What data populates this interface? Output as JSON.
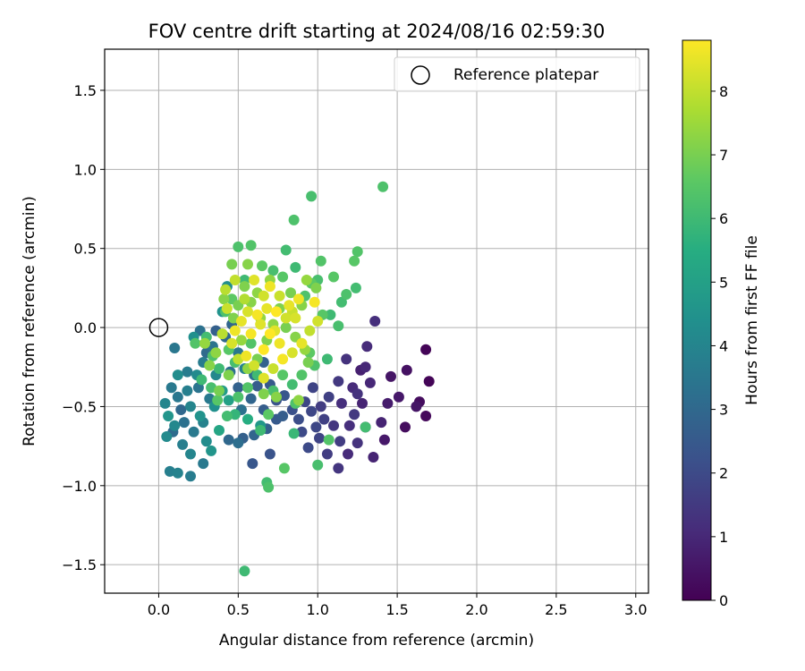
{
  "chart_data": {
    "type": "scatter",
    "title": "FOV centre drift starting at 2024/08/16 02:59:30",
    "xlabel": "Angular distance from reference (arcmin)",
    "ylabel": "Rotation from reference (arcmin)",
    "xlim": [
      -0.34,
      3.08
    ],
    "ylim": [
      -1.68,
      1.76
    ],
    "xticks": [
      0.0,
      0.5,
      1.0,
      1.5,
      2.0,
      2.5,
      3.0
    ],
    "xtick_labels": [
      "0.0",
      "0.5",
      "1.0",
      "1.5",
      "2.0",
      "2.5",
      "3.0"
    ],
    "yticks": [
      -1.5,
      -1.0,
      -0.5,
      0.0,
      0.5,
      1.0,
      1.5
    ],
    "ytick_labels": [
      "−1.5",
      "−1.0",
      "−0.5",
      "0.0",
      "0.5",
      "1.0",
      "1.5"
    ],
    "grid": true,
    "legend": {
      "placement": "top-right",
      "entries": [
        "Reference platepar"
      ]
    },
    "reference_point": {
      "x": 0.0,
      "y": 0.0
    },
    "colorbar": {
      "label": "Hours from first FF file",
      "range": [
        0,
        8.8
      ],
      "ticks": [
        0,
        1,
        2,
        3,
        4,
        5,
        6,
        7,
        8
      ],
      "tick_labels": [
        "0",
        "1",
        "2",
        "3",
        "4",
        "5",
        "6",
        "7",
        "8"
      ],
      "colormap": "viridis"
    },
    "points": [
      {
        "x": 1.68,
        "y": -0.14,
        "h": 0.1
      },
      {
        "x": 1.7,
        "y": -0.34,
        "h": 0.1
      },
      {
        "x": 1.68,
        "y": -0.56,
        "h": 0.2
      },
      {
        "x": 1.64,
        "y": -0.47,
        "h": 0.3
      },
      {
        "x": 1.62,
        "y": -0.5,
        "h": 0.5
      },
      {
        "x": 1.56,
        "y": -0.27,
        "h": 0.4
      },
      {
        "x": 1.55,
        "y": -0.63,
        "h": 0.3
      },
      {
        "x": 1.46,
        "y": -0.31,
        "h": 0.5
      },
      {
        "x": 1.51,
        "y": -0.44,
        "h": 0.6
      },
      {
        "x": 1.44,
        "y": -0.48,
        "h": 0.7
      },
      {
        "x": 1.4,
        "y": -0.6,
        "h": 0.9
      },
      {
        "x": 1.36,
        "y": 0.04,
        "h": 1.2
      },
      {
        "x": 1.31,
        "y": -0.12,
        "h": 1.1
      },
      {
        "x": 1.3,
        "y": -0.25,
        "h": 1.0
      },
      {
        "x": 1.27,
        "y": -0.27,
        "h": 0.8
      },
      {
        "x": 1.25,
        "y": -0.42,
        "h": 1.3
      },
      {
        "x": 1.23,
        "y": -0.55,
        "h": 1.5
      },
      {
        "x": 1.2,
        "y": -0.62,
        "h": 1.2
      },
      {
        "x": 1.19,
        "y": -0.8,
        "h": 1.1
      },
      {
        "x": 1.13,
        "y": -0.89,
        "h": 1.4
      },
      {
        "x": 1.06,
        "y": -0.8,
        "h": 1.6
      },
      {
        "x": 1.01,
        "y": -0.7,
        "h": 1.8
      },
      {
        "x": 0.99,
        "y": -0.63,
        "h": 1.9
      },
      {
        "x": 0.94,
        "y": -0.76,
        "h": 2.0
      },
      {
        "x": 0.88,
        "y": -0.58,
        "h": 2.1
      },
      {
        "x": 1.35,
        "y": -0.82,
        "h": 0.9
      },
      {
        "x": 1.42,
        "y": -0.71,
        "h": 0.6
      },
      {
        "x": 1.33,
        "y": -0.35,
        "h": 1.0
      },
      {
        "x": 1.18,
        "y": -0.2,
        "h": 1.3
      },
      {
        "x": 1.13,
        "y": -0.34,
        "h": 1.5
      },
      {
        "x": 1.07,
        "y": -0.44,
        "h": 1.7
      },
      {
        "x": 1.02,
        "y": -0.5,
        "h": 1.6
      },
      {
        "x": 0.97,
        "y": -0.38,
        "h": 1.8
      },
      {
        "x": 0.92,
        "y": -0.47,
        "h": 1.9
      },
      {
        "x": 0.84,
        "y": -0.52,
        "h": 2.2
      },
      {
        "x": 0.79,
        "y": -0.43,
        "h": 2.4
      },
      {
        "x": 0.74,
        "y": -0.58,
        "h": 2.5
      },
      {
        "x": 0.7,
        "y": -0.8,
        "h": 2.3
      },
      {
        "x": 0.59,
        "y": -0.86,
        "h": 2.4
      },
      {
        "x": 0.53,
        "y": -0.7,
        "h": 2.7
      },
      {
        "x": 0.66,
        "y": -0.52,
        "h": 2.6
      },
      {
        "x": 1.1,
        "y": -0.62,
        "h": 1.4
      },
      {
        "x": 1.15,
        "y": -0.48,
        "h": 1.2
      },
      {
        "x": 1.22,
        "y": -0.38,
        "h": 1.1
      },
      {
        "x": 1.28,
        "y": -0.48,
        "h": 0.9
      },
      {
        "x": 1.3,
        "y": -0.63,
        "h": 1.0
      },
      {
        "x": 1.25,
        "y": -0.73,
        "h": 1.3
      },
      {
        "x": 1.14,
        "y": -0.72,
        "h": 1.6
      },
      {
        "x": 1.04,
        "y": -0.58,
        "h": 1.7
      },
      {
        "x": 0.9,
        "y": -0.66,
        "h": 2.0
      },
      {
        "x": 0.96,
        "y": -0.53,
        "h": 1.9
      },
      {
        "x": 0.12,
        "y": -0.92,
        "h": 3.9
      },
      {
        "x": 0.07,
        "y": -0.91,
        "h": 3.8
      },
      {
        "x": 0.2,
        "y": -0.94,
        "h": 3.7
      },
      {
        "x": 0.05,
        "y": -0.69,
        "h": 4.2
      },
      {
        "x": 0.1,
        "y": -0.62,
        "h": 4.1
      },
      {
        "x": 0.15,
        "y": -0.74,
        "h": 3.8
      },
      {
        "x": 0.04,
        "y": -0.48,
        "h": 4.0
      },
      {
        "x": 0.08,
        "y": -0.38,
        "h": 3.6
      },
      {
        "x": 0.12,
        "y": -0.44,
        "h": 3.5
      },
      {
        "x": 0.18,
        "y": -0.28,
        "h": 3.7
      },
      {
        "x": 0.1,
        "y": -0.13,
        "h": 3.5
      },
      {
        "x": 0.22,
        "y": -0.06,
        "h": 4.4
      },
      {
        "x": 0.3,
        "y": -0.72,
        "h": 4.3
      },
      {
        "x": 0.33,
        "y": -0.78,
        "h": 4.6
      },
      {
        "x": 0.44,
        "y": -0.71,
        "h": 3.0
      },
      {
        "x": 0.5,
        "y": -0.73,
        "h": 3.2
      },
      {
        "x": 0.38,
        "y": -0.65,
        "h": 5.2
      },
      {
        "x": 0.26,
        "y": -0.56,
        "h": 4.5
      },
      {
        "x": 0.2,
        "y": -0.5,
        "h": 4.0
      },
      {
        "x": 0.25,
        "y": -0.38,
        "h": 3.4
      },
      {
        "x": 0.32,
        "y": -0.45,
        "h": 3.6
      },
      {
        "x": 0.36,
        "y": -0.3,
        "h": 4.1
      },
      {
        "x": 0.3,
        "y": -0.16,
        "h": 3.1
      },
      {
        "x": 0.26,
        "y": -0.02,
        "h": 3.3
      },
      {
        "x": 0.36,
        "y": -0.02,
        "h": 2.7
      },
      {
        "x": 0.4,
        "y": 0.1,
        "h": 4.5
      },
      {
        "x": 0.43,
        "y": 0.26,
        "h": 4.3
      },
      {
        "x": 0.45,
        "y": -0.28,
        "h": 3.2
      },
      {
        "x": 0.5,
        "y": -0.38,
        "h": 2.8
      },
      {
        "x": 0.52,
        "y": -0.52,
        "h": 3.3
      },
      {
        "x": 0.58,
        "y": -0.45,
        "h": 2.9
      },
      {
        "x": 0.62,
        "y": -0.37,
        "h": 2.6
      },
      {
        "x": 0.64,
        "y": -0.62,
        "h": 4.7
      },
      {
        "x": 0.56,
        "y": -0.58,
        "h": 5.5
      },
      {
        "x": 0.48,
        "y": -0.55,
        "h": 5.8
      },
      {
        "x": 0.44,
        "y": -0.46,
        "h": 5.0
      },
      {
        "x": 0.4,
        "y": -0.4,
        "h": 4.8
      },
      {
        "x": 0.35,
        "y": -0.5,
        "h": 4.4
      },
      {
        "x": 0.28,
        "y": -0.6,
        "h": 3.9
      },
      {
        "x": 0.22,
        "y": -0.66,
        "h": 3.6
      },
      {
        "x": 0.16,
        "y": -0.6,
        "h": 3.3
      },
      {
        "x": 0.14,
        "y": -0.52,
        "h": 3.0
      },
      {
        "x": 0.18,
        "y": -0.4,
        "h": 3.8
      },
      {
        "x": 0.24,
        "y": -0.3,
        "h": 4.2
      },
      {
        "x": 0.28,
        "y": -0.22,
        "h": 3.7
      },
      {
        "x": 0.34,
        "y": -0.12,
        "h": 3.4
      },
      {
        "x": 0.42,
        "y": -0.06,
        "h": 3.0
      },
      {
        "x": 0.46,
        "y": 0.02,
        "h": 2.9
      },
      {
        "x": 0.5,
        "y": -0.16,
        "h": 3.5
      },
      {
        "x": 0.54,
        "y": -0.26,
        "h": 3.9
      },
      {
        "x": 0.6,
        "y": -0.3,
        "h": 3.2
      },
      {
        "x": 0.66,
        "y": -0.22,
        "h": 2.8
      },
      {
        "x": 0.7,
        "y": -0.36,
        "h": 2.5
      },
      {
        "x": 0.74,
        "y": -0.46,
        "h": 2.3
      },
      {
        "x": 0.78,
        "y": -0.56,
        "h": 2.6
      },
      {
        "x": 0.68,
        "y": -0.64,
        "h": 2.7
      },
      {
        "x": 0.6,
        "y": -0.68,
        "h": 2.9
      },
      {
        "x": 0.12,
        "y": -0.3,
        "h": 4.3
      },
      {
        "x": 0.06,
        "y": -0.56,
        "h": 4.6
      },
      {
        "x": 0.09,
        "y": -0.66,
        "h": 3.1
      },
      {
        "x": 0.2,
        "y": -0.8,
        "h": 4.0
      },
      {
        "x": 0.28,
        "y": -0.86,
        "h": 3.6
      },
      {
        "x": 0.54,
        "y": -1.54,
        "h": 6.0
      },
      {
        "x": 0.68,
        "y": -0.98,
        "h": 6.1
      },
      {
        "x": 0.69,
        "y": -1.01,
        "h": 6.3
      },
      {
        "x": 0.79,
        "y": -0.89,
        "h": 6.5
      },
      {
        "x": 1.0,
        "y": -0.87,
        "h": 6.2
      },
      {
        "x": 1.07,
        "y": -0.71,
        "h": 6.4
      },
      {
        "x": 1.3,
        "y": -0.63,
        "h": 6.1
      },
      {
        "x": 0.86,
        "y": -0.48,
        "h": 6.3
      },
      {
        "x": 0.85,
        "y": -0.67,
        "h": 5.9
      },
      {
        "x": 0.69,
        "y": -0.55,
        "h": 6.6
      },
      {
        "x": 0.64,
        "y": -0.65,
        "h": 6.0
      },
      {
        "x": 1.41,
        "y": 0.89,
        "h": 6.3
      },
      {
        "x": 0.96,
        "y": 0.83,
        "h": 6.2
      },
      {
        "x": 0.85,
        "y": 0.68,
        "h": 6.3
      },
      {
        "x": 1.25,
        "y": 0.48,
        "h": 6.4
      },
      {
        "x": 1.23,
        "y": 0.42,
        "h": 6.5
      },
      {
        "x": 1.24,
        "y": 0.25,
        "h": 6.1
      },
      {
        "x": 1.18,
        "y": 0.21,
        "h": 6.3
      },
      {
        "x": 1.1,
        "y": 0.32,
        "h": 6.5
      },
      {
        "x": 1.15,
        "y": 0.16,
        "h": 6.1
      },
      {
        "x": 1.02,
        "y": 0.42,
        "h": 6.4
      },
      {
        "x": 1.0,
        "y": 0.3,
        "h": 6.2
      },
      {
        "x": 0.96,
        "y": 0.28,
        "h": 6.6
      },
      {
        "x": 0.92,
        "y": 0.2,
        "h": 6.3
      },
      {
        "x": 0.86,
        "y": 0.38,
        "h": 6.0
      },
      {
        "x": 0.8,
        "y": 0.49,
        "h": 6.1
      },
      {
        "x": 0.78,
        "y": 0.32,
        "h": 6.5
      },
      {
        "x": 0.72,
        "y": 0.36,
        "h": 6.2
      },
      {
        "x": 0.65,
        "y": 0.39,
        "h": 6.6
      },
      {
        "x": 0.58,
        "y": 0.52,
        "h": 6.4
      },
      {
        "x": 0.5,
        "y": 0.51,
        "h": 6.3
      },
      {
        "x": 0.54,
        "y": 0.3,
        "h": 6.0
      },
      {
        "x": 0.46,
        "y": 0.18,
        "h": 6.6
      },
      {
        "x": 0.42,
        "y": 0.1,
        "h": 6.3
      },
      {
        "x": 1.03,
        "y": 0.08,
        "h": 6.5
      },
      {
        "x": 1.08,
        "y": 0.08,
        "h": 6.0
      },
      {
        "x": 1.13,
        "y": 0.01,
        "h": 6.2
      },
      {
        "x": 1.06,
        "y": -0.2,
        "h": 6.0
      },
      {
        "x": 0.98,
        "y": -0.24,
        "h": 6.3
      },
      {
        "x": 0.95,
        "y": -0.16,
        "h": 6.6
      },
      {
        "x": 0.9,
        "y": -0.3,
        "h": 6.4
      },
      {
        "x": 0.84,
        "y": -0.36,
        "h": 6.1
      },
      {
        "x": 0.78,
        "y": -0.3,
        "h": 6.5
      },
      {
        "x": 0.72,
        "y": -0.4,
        "h": 6.2
      },
      {
        "x": 0.62,
        "y": -0.3,
        "h": 6.0
      },
      {
        "x": 0.56,
        "y": -0.38,
        "h": 6.4
      },
      {
        "x": 0.5,
        "y": -0.44,
        "h": 6.3
      },
      {
        "x": 0.43,
        "y": -0.56,
        "h": 6.1
      },
      {
        "x": 0.37,
        "y": -0.46,
        "h": 6.5
      },
      {
        "x": 0.33,
        "y": -0.38,
        "h": 6.2
      },
      {
        "x": 0.27,
        "y": -0.33,
        "h": 6.0
      },
      {
        "x": 0.23,
        "y": -0.1,
        "h": 6.4
      },
      {
        "x": 0.3,
        "y": -0.06,
        "h": 6.1
      },
      {
        "x": 0.34,
        "y": -0.18,
        "h": 6.3
      },
      {
        "x": 0.38,
        "y": -0.26,
        "h": 6.0
      },
      {
        "x": 0.44,
        "y": -0.14,
        "h": 6.5
      },
      {
        "x": 0.48,
        "y": -0.22,
        "h": 6.2
      },
      {
        "x": 0.58,
        "y": -0.1,
        "h": 6.4
      },
      {
        "x": 0.46,
        "y": 0.4,
        "h": 7.0
      },
      {
        "x": 0.56,
        "y": 0.4,
        "h": 7.2
      },
      {
        "x": 0.7,
        "y": 0.3,
        "h": 7.3
      },
      {
        "x": 0.76,
        "y": 0.12,
        "h": 7.1
      },
      {
        "x": 0.83,
        "y": 0.22,
        "h": 7.0
      },
      {
        "x": 0.9,
        "y": 0.14,
        "h": 7.2
      },
      {
        "x": 0.93,
        "y": 0.3,
        "h": 7.4
      },
      {
        "x": 0.99,
        "y": 0.25,
        "h": 7.1
      },
      {
        "x": 0.94,
        "y": -0.22,
        "h": 7.0
      },
      {
        "x": 0.88,
        "y": -0.46,
        "h": 7.3
      },
      {
        "x": 0.74,
        "y": -0.44,
        "h": 7.2
      },
      {
        "x": 0.66,
        "y": -0.42,
        "h": 7.1
      },
      {
        "x": 0.62,
        "y": -0.2,
        "h": 7.0
      },
      {
        "x": 0.56,
        "y": -0.26,
        "h": 7.3
      },
      {
        "x": 0.52,
        "y": -0.08,
        "h": 7.4
      },
      {
        "x": 0.47,
        "y": 0.06,
        "h": 7.1
      },
      {
        "x": 0.41,
        "y": 0.18,
        "h": 7.2
      },
      {
        "x": 0.38,
        "y": -0.4,
        "h": 7.0
      },
      {
        "x": 0.32,
        "y": -0.24,
        "h": 7.2
      },
      {
        "x": 0.29,
        "y": -0.1,
        "h": 7.4
      },
      {
        "x": 0.36,
        "y": -0.16,
        "h": 7.3
      },
      {
        "x": 0.44,
        "y": -0.3,
        "h": 7.1
      },
      {
        "x": 0.5,
        "y": 0.14,
        "h": 7.0
      },
      {
        "x": 0.58,
        "y": 0.16,
        "h": 7.2
      },
      {
        "x": 0.64,
        "y": 0.06,
        "h": 7.4
      },
      {
        "x": 0.68,
        "y": -0.08,
        "h": 7.1
      },
      {
        "x": 0.72,
        "y": 0.02,
        "h": 7.3
      },
      {
        "x": 0.8,
        "y": 0.0,
        "h": 7.0
      },
      {
        "x": 0.86,
        "y": -0.06,
        "h": 7.2
      },
      {
        "x": 0.92,
        "y": -0.14,
        "h": 7.4
      },
      {
        "x": 0.54,
        "y": 0.26,
        "h": 7.1
      },
      {
        "x": 0.62,
        "y": 0.22,
        "h": 7.3
      },
      {
        "x": 0.42,
        "y": 0.24,
        "h": 7.9
      },
      {
        "x": 0.48,
        "y": 0.3,
        "h": 8.0
      },
      {
        "x": 0.54,
        "y": 0.18,
        "h": 7.8
      },
      {
        "x": 0.6,
        "y": 0.3,
        "h": 8.4
      },
      {
        "x": 0.66,
        "y": 0.2,
        "h": 8.2
      },
      {
        "x": 0.7,
        "y": 0.26,
        "h": 8.6
      },
      {
        "x": 0.76,
        "y": 0.2,
        "h": 8.1
      },
      {
        "x": 0.82,
        "y": 0.14,
        "h": 8.5
      },
      {
        "x": 0.86,
        "y": 0.06,
        "h": 8.3
      },
      {
        "x": 0.98,
        "y": 0.16,
        "h": 8.7
      },
      {
        "x": 1.0,
        "y": 0.04,
        "h": 8.2
      },
      {
        "x": 0.95,
        "y": -0.02,
        "h": 8.0
      },
      {
        "x": 0.9,
        "y": -0.1,
        "h": 8.5
      },
      {
        "x": 0.84,
        "y": -0.16,
        "h": 8.3
      },
      {
        "x": 0.78,
        "y": -0.2,
        "h": 8.7
      },
      {
        "x": 0.72,
        "y": -0.26,
        "h": 8.1
      },
      {
        "x": 0.66,
        "y": -0.32,
        "h": 8.4
      },
      {
        "x": 0.6,
        "y": -0.24,
        "h": 8.2
      },
      {
        "x": 0.55,
        "y": -0.18,
        "h": 8.6
      },
      {
        "x": 0.5,
        "y": -0.2,
        "h": 8.0
      },
      {
        "x": 0.46,
        "y": -0.1,
        "h": 8.3
      },
      {
        "x": 0.4,
        "y": -0.04,
        "h": 7.9
      },
      {
        "x": 0.43,
        "y": 0.12,
        "h": 8.1
      },
      {
        "x": 0.52,
        "y": 0.04,
        "h": 8.5
      },
      {
        "x": 0.58,
        "y": -0.04,
        "h": 8.7
      },
      {
        "x": 0.64,
        "y": 0.02,
        "h": 8.4
      },
      {
        "x": 0.7,
        "y": -0.04,
        "h": 8.8
      },
      {
        "x": 0.76,
        "y": -0.1,
        "h": 8.6
      },
      {
        "x": 0.8,
        "y": 0.06,
        "h": 8.2
      },
      {
        "x": 0.74,
        "y": 0.1,
        "h": 8.8
      },
      {
        "x": 0.68,
        "y": 0.12,
        "h": 8.5
      },
      {
        "x": 0.62,
        "y": 0.08,
        "h": 8.7
      },
      {
        "x": 0.56,
        "y": 0.1,
        "h": 8.3
      },
      {
        "x": 0.48,
        "y": -0.02,
        "h": 8.6
      },
      {
        "x": 0.66,
        "y": -0.14,
        "h": 8.8
      },
      {
        "x": 0.73,
        "y": -0.02,
        "h": 8.4
      },
      {
        "x": 0.84,
        "y": 0.1,
        "h": 8.1
      },
      {
        "x": 0.88,
        "y": 0.18,
        "h": 8.6
      }
    ]
  }
}
